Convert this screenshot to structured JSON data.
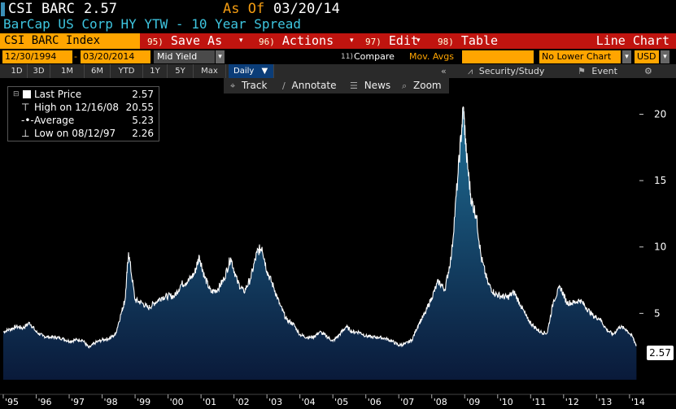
{
  "header": {
    "ticker": "CSI BARC",
    "price": "2.57",
    "as_of_label": "As Of",
    "as_of_date": "03/20/14",
    "subtitle": "BarCap US Corp HY YTW - 10 Year Spread"
  },
  "toolbar": {
    "index_name": "CSI BARC Index",
    "save_num": "95)",
    "save_label": "Save As",
    "actions_num": "96)",
    "actions_label": "Actions",
    "edit_num": "97)",
    "edit_label": "Edit",
    "table_num": "98)",
    "table_label": "Table",
    "chart_type": "Line Chart"
  },
  "params": {
    "start_date": "12/30/1994",
    "end_date": "03/20/2014",
    "field": "Mid Yield",
    "compare_num": "11)",
    "compare": "Compare",
    "mov_avgs": "Mov. Avgs",
    "lower_chart": "No Lower Chart",
    "currency": "USD"
  },
  "periods": {
    "items": [
      "1D",
      "3D",
      "1M",
      "6M",
      "YTD",
      "1Y",
      "5Y",
      "Max"
    ],
    "selected": "Daily",
    "security_study": "Security/Study",
    "event": "Event"
  },
  "tools": {
    "track": "Track",
    "annotate": "Annotate",
    "news": "News",
    "zoom": "Zoom"
  },
  "legend": {
    "last_label": "Last Price",
    "last_value": "2.57",
    "high_label": "High on 12/16/08",
    "high_value": "20.55",
    "avg_label": "Average",
    "avg_value": "5.23",
    "low_label": "Low on 08/12/97",
    "low_value": "2.26"
  },
  "last_value_tag": "2.57",
  "colors": {
    "accent_orange": "#ffa500",
    "toolbar_red": "#c0140f",
    "subtitle_cyan": "#3ec6e0",
    "line": "#ffffff",
    "area_top": "#1f6f96",
    "area_bottom": "#0a1a3a"
  },
  "chart_data": {
    "type": "area",
    "title": "BarCap US Corp HY YTW - 10 Year Spread",
    "xlabel": "",
    "ylabel": "",
    "ylim": [
      0,
      21.5
    ],
    "y_ticks": [
      5,
      10,
      15,
      20
    ],
    "x_tick_labels": [
      "'95",
      "'96",
      "'97",
      "'98",
      "'99",
      "'00",
      "'01",
      "'02",
      "'03",
      "'04",
      "'05",
      "'06",
      "'07",
      "'08",
      "'09",
      "'10",
      "'11",
      "'12",
      "'13",
      "'14"
    ],
    "x_tick_years": [
      1995,
      1996,
      1997,
      1998,
      1999,
      2000,
      2001,
      2002,
      2003,
      2004,
      2005,
      2006,
      2007,
      2008,
      2009,
      2010,
      2011,
      2012,
      2013,
      2014
    ],
    "x_range": [
      1995.0,
      2014.3
    ],
    "grid": false,
    "series": [
      {
        "name": "CSI BARC Index",
        "x": [
          1995.0,
          1995.2,
          1995.4,
          1995.6,
          1995.8,
          1996.0,
          1996.2,
          1996.4,
          1996.6,
          1996.8,
          1997.0,
          1997.2,
          1997.4,
          1997.6,
          1997.8,
          1998.0,
          1998.2,
          1998.4,
          1998.6,
          1998.7,
          1998.8,
          1999.0,
          1999.2,
          1999.4,
          1999.6,
          1999.8,
          2000.0,
          2000.2,
          2000.4,
          2000.6,
          2000.8,
          2000.95,
          2001.1,
          2001.3,
          2001.5,
          2001.7,
          2001.9,
          2002.1,
          2002.3,
          2002.5,
          2002.7,
          2002.85,
          2003.0,
          2003.2,
          2003.4,
          2003.6,
          2003.8,
          2004.0,
          2004.2,
          2004.4,
          2004.6,
          2004.8,
          2005.0,
          2005.2,
          2005.4,
          2005.6,
          2005.8,
          2006.0,
          2006.2,
          2006.4,
          2006.6,
          2006.8,
          2007.0,
          2007.2,
          2007.4,
          2007.6,
          2007.8,
          2008.0,
          2008.2,
          2008.4,
          2008.6,
          2008.8,
          2008.96,
          2009.05,
          2009.2,
          2009.35,
          2009.5,
          2009.7,
          2009.9,
          2010.1,
          2010.3,
          2010.5,
          2010.7,
          2010.9,
          2011.1,
          2011.3,
          2011.5,
          2011.7,
          2011.9,
          2012.1,
          2012.3,
          2012.5,
          2012.7,
          2012.9,
          2013.1,
          2013.3,
          2013.5,
          2013.7,
          2013.9,
          2014.1,
          2014.21
        ],
        "values": [
          3.6,
          3.8,
          4.0,
          3.9,
          4.3,
          3.6,
          3.3,
          3.2,
          3.2,
          3.1,
          2.9,
          3.0,
          3.0,
          2.4,
          2.8,
          3.0,
          3.1,
          3.4,
          5.2,
          6.1,
          9.6,
          6.0,
          5.8,
          5.4,
          5.8,
          6.2,
          6.3,
          6.3,
          7.2,
          7.4,
          8.0,
          9.3,
          7.8,
          6.6,
          6.8,
          7.6,
          9.2,
          7.4,
          6.6,
          7.6,
          9.6,
          10.0,
          8.2,
          7.0,
          5.6,
          4.5,
          4.2,
          3.4,
          3.2,
          3.2,
          3.6,
          3.3,
          2.9,
          3.4,
          4.0,
          3.6,
          3.6,
          3.3,
          3.2,
          3.2,
          3.1,
          2.9,
          2.6,
          2.7,
          3.0,
          4.2,
          5.0,
          6.2,
          7.4,
          6.8,
          9.4,
          15.6,
          20.55,
          17.0,
          13.5,
          12.4,
          9.2,
          7.3,
          6.5,
          6.3,
          6.2,
          6.6,
          5.6,
          4.6,
          4.0,
          3.6,
          3.5,
          6.0,
          7.0,
          5.8,
          5.8,
          6.0,
          5.4,
          4.8,
          4.6,
          3.8,
          3.4,
          4.0,
          3.8,
          3.2,
          2.57
        ]
      }
    ]
  }
}
